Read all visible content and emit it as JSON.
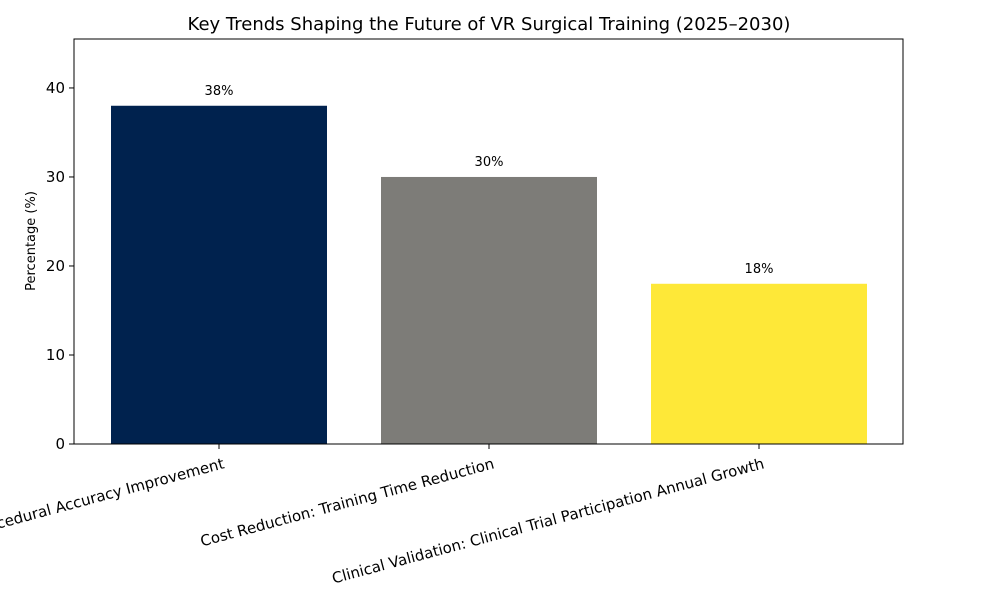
{
  "chart_data": {
    "type": "bar",
    "title": "Key Trends Shaping the Future of VR Surgical Training (2025–2030)",
    "xlabel": "",
    "ylabel": "Percentage (%)",
    "ylim": [
      0,
      45.5
    ],
    "yticks": [
      0,
      10,
      20,
      30,
      40
    ],
    "categories": [
      "Haptic Feedback: Procedural Accuracy Improvement",
      "Cost Reduction: Training Time Reduction",
      "Clinical Validation: Clinical Trial Participation Annual Growth"
    ],
    "values": [
      38,
      30,
      18
    ],
    "data_labels": [
      "38%",
      "30%",
      "18%"
    ],
    "colors": [
      "#00224e",
      "#7d7c78",
      "#fee838"
    ],
    "grid": false,
    "legend": "none"
  }
}
